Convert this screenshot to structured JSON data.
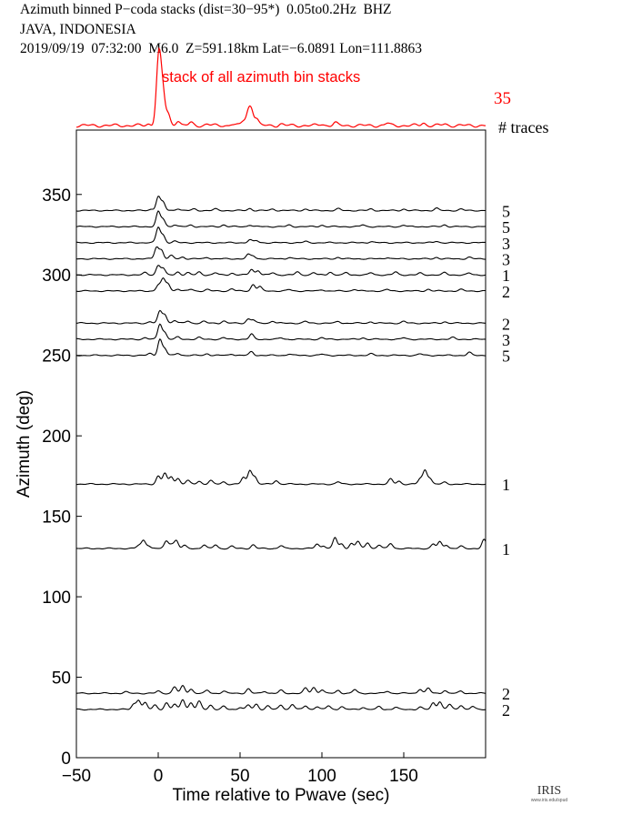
{
  "header": {
    "line1": "Azimuth binned P−coda stacks (dist=30−95*)  0.05to0.2Hz  BHZ",
    "line2": "JAVA, INDONESIA",
    "line3": "2019/09/19  07:32:00  M6.0  Z=591.18km Lat=−6.0891 Lon=111.8863"
  },
  "colors": {
    "stack": "#ff0000",
    "trace": "#000000",
    "axis": "#000000"
  },
  "logo": {
    "text": "IRIS",
    "subtext": "www.iris.edu/spud"
  },
  "chart_data": {
    "type": "line",
    "title": "",
    "xlabel": "Time relative to Pwave (sec)",
    "ylabel": "Azimuth (deg)",
    "xlim": [
      -50,
      200
    ],
    "ylim": [
      0,
      390
    ],
    "xticks": [
      -50,
      0,
      50,
      100,
      150
    ],
    "yticks": [
      0,
      50,
      100,
      150,
      200,
      250,
      300,
      350
    ],
    "grid": false,
    "stack": {
      "label": "stack of all azimuth bin stacks",
      "count": 35,
      "count_label": "# traces",
      "peaks": [
        [
          -6,
          0.04
        ],
        [
          -1,
          0.25
        ],
        [
          0,
          0.9
        ],
        [
          1,
          1.0
        ],
        [
          3,
          0.75
        ],
        [
          6,
          0.3
        ],
        [
          12,
          0.14
        ],
        [
          20,
          0.07
        ],
        [
          30,
          0.04
        ],
        [
          45,
          0.04
        ],
        [
          52,
          0.12
        ],
        [
          55,
          0.33
        ],
        [
          57,
          0.38
        ],
        [
          60,
          0.18
        ],
        [
          75,
          0.04
        ],
        [
          100,
          0.04
        ],
        [
          108,
          0.07
        ],
        [
          140,
          0.06
        ],
        [
          162,
          0.07
        ],
        [
          175,
          0.04
        ]
      ]
    },
    "traces": [
      {
        "azimuth": 340,
        "count": "5",
        "peaks": [
          [
            -4,
            0.1
          ],
          [
            0,
            0.95
          ],
          [
            3,
            0.55
          ],
          [
            12,
            0.14
          ],
          [
            22,
            0.1
          ],
          [
            35,
            0.1
          ],
          [
            56,
            0.14
          ],
          [
            70,
            0.1
          ],
          [
            90,
            0.1
          ],
          [
            110,
            0.12
          ],
          [
            130,
            0.1
          ],
          [
            150,
            0.1
          ],
          [
            170,
            0.15
          ],
          [
            185,
            0.1
          ]
        ]
      },
      {
        "azimuth": 330,
        "count": "5",
        "peaks": [
          [
            0,
            1.0
          ],
          [
            3,
            0.5
          ],
          [
            10,
            0.14
          ],
          [
            20,
            0.1
          ],
          [
            40,
            0.12
          ],
          [
            56,
            0.12
          ],
          [
            80,
            0.1
          ],
          [
            100,
            0.1
          ],
          [
            125,
            0.12
          ],
          [
            150,
            0.1
          ],
          [
            175,
            0.12
          ]
        ]
      },
      {
        "azimuth": 320,
        "count": "3",
        "peaks": [
          [
            0,
            1.05
          ],
          [
            3,
            0.5
          ],
          [
            10,
            0.1
          ],
          [
            56,
            0.2
          ],
          [
            60,
            0.14
          ],
          [
            90,
            0.08
          ],
          [
            130,
            0.08
          ],
          [
            170,
            0.1
          ]
        ]
      },
      {
        "azimuth": 310,
        "count": "3",
        "peaks": [
          [
            -1,
            0.8
          ],
          [
            2,
            0.6
          ],
          [
            8,
            0.22
          ],
          [
            15,
            0.12
          ],
          [
            30,
            0.1
          ],
          [
            55,
            0.28
          ],
          [
            58,
            0.2
          ],
          [
            80,
            0.1
          ],
          [
            110,
            0.1
          ],
          [
            140,
            0.1
          ],
          [
            170,
            0.1
          ],
          [
            190,
            0.1
          ]
        ]
      },
      {
        "azimuth": 300,
        "count": "1",
        "peaks": [
          [
            -8,
            0.15
          ],
          [
            0,
            0.65
          ],
          [
            3,
            0.45
          ],
          [
            12,
            0.2
          ],
          [
            18,
            0.15
          ],
          [
            25,
            0.2
          ],
          [
            35,
            0.14
          ],
          [
            45,
            0.12
          ],
          [
            57,
            0.4
          ],
          [
            61,
            0.3
          ],
          [
            70,
            0.15
          ],
          [
            85,
            0.2
          ],
          [
            95,
            0.15
          ],
          [
            105,
            0.2
          ],
          [
            115,
            0.15
          ],
          [
            130,
            0.15
          ],
          [
            145,
            0.2
          ],
          [
            160,
            0.12
          ],
          [
            175,
            0.15
          ],
          [
            190,
            0.12
          ]
        ]
      },
      {
        "azimuth": 290,
        "count": "2",
        "peaks": [
          [
            0,
            0.4
          ],
          [
            3,
            0.8
          ],
          [
            6,
            0.5
          ],
          [
            12,
            0.15
          ],
          [
            20,
            0.12
          ],
          [
            30,
            0.1
          ],
          [
            45,
            0.15
          ],
          [
            58,
            0.45
          ],
          [
            62,
            0.3
          ],
          [
            80,
            0.1
          ],
          [
            100,
            0.1
          ],
          [
            120,
            0.12
          ],
          [
            140,
            0.1
          ],
          [
            165,
            0.12
          ],
          [
            185,
            0.1
          ]
        ]
      },
      {
        "azimuth": 270,
        "count": "2",
        "peaks": [
          [
            -5,
            0.1
          ],
          [
            1,
            0.8
          ],
          [
            4,
            0.6
          ],
          [
            10,
            0.2
          ],
          [
            18,
            0.15
          ],
          [
            28,
            0.12
          ],
          [
            40,
            0.15
          ],
          [
            55,
            0.28
          ],
          [
            58,
            0.22
          ],
          [
            70,
            0.15
          ],
          [
            90,
            0.12
          ],
          [
            110,
            0.12
          ],
          [
            130,
            0.1
          ],
          [
            150,
            0.12
          ],
          [
            175,
            0.1
          ]
        ]
      },
      {
        "azimuth": 260,
        "count": "3",
        "peaks": [
          [
            -8,
            0.1
          ],
          [
            1,
            1.05
          ],
          [
            4,
            0.45
          ],
          [
            12,
            0.15
          ],
          [
            25,
            0.12
          ],
          [
            40,
            0.1
          ],
          [
            57,
            0.35
          ],
          [
            75,
            0.1
          ],
          [
            100,
            0.1
          ],
          [
            125,
            0.1
          ],
          [
            150,
            0.1
          ],
          [
            180,
            0.12
          ]
        ]
      },
      {
        "azimuth": 250,
        "count": "5",
        "peaks": [
          [
            -5,
            0.12
          ],
          [
            1,
            1.1
          ],
          [
            4,
            0.45
          ],
          [
            12,
            0.15
          ],
          [
            30,
            0.12
          ],
          [
            45,
            0.1
          ],
          [
            57,
            0.25
          ],
          [
            80,
            0.1
          ],
          [
            100,
            0.08
          ],
          [
            130,
            0.1
          ],
          [
            160,
            0.1
          ],
          [
            190,
            0.2
          ]
        ]
      },
      {
        "azimuth": 170,
        "count": "1",
        "peaks": [
          [
            0,
            0.55
          ],
          [
            4,
            0.75
          ],
          [
            8,
            0.5
          ],
          [
            12,
            0.4
          ],
          [
            18,
            0.25
          ],
          [
            25,
            0.2
          ],
          [
            32,
            0.25
          ],
          [
            40,
            0.15
          ],
          [
            52,
            0.45
          ],
          [
            56,
            0.95
          ],
          [
            59,
            0.5
          ],
          [
            72,
            0.25
          ],
          [
            110,
            0.15
          ],
          [
            142,
            0.35
          ],
          [
            147,
            0.2
          ],
          [
            160,
            0.35
          ],
          [
            163,
            0.95
          ],
          [
            166,
            0.4
          ],
          [
            175,
            0.12
          ]
        ]
      },
      {
        "azimuth": 130,
        "count": "1",
        "peaks": [
          [
            -12,
            0.2
          ],
          [
            -9,
            0.55
          ],
          [
            -6,
            0.2
          ],
          [
            5,
            0.5
          ],
          [
            8,
            0.3
          ],
          [
            11,
            0.55
          ],
          [
            16,
            0.2
          ],
          [
            28,
            0.25
          ],
          [
            35,
            0.25
          ],
          [
            45,
            0.15
          ],
          [
            58,
            0.25
          ],
          [
            75,
            0.2
          ],
          [
            97,
            0.3
          ],
          [
            101,
            0.2
          ],
          [
            108,
            0.75
          ],
          [
            112,
            0.3
          ],
          [
            118,
            0.35
          ],
          [
            122,
            0.5
          ],
          [
            128,
            0.4
          ],
          [
            135,
            0.25
          ],
          [
            142,
            0.35
          ],
          [
            168,
            0.3
          ],
          [
            172,
            0.45
          ],
          [
            176,
            0.25
          ],
          [
            185,
            0.15
          ],
          [
            199,
            0.6
          ]
        ]
      },
      {
        "azimuth": 40,
        "count": "2",
        "peaks": [
          [
            -20,
            0.1
          ],
          [
            0,
            0.15
          ],
          [
            10,
            0.45
          ],
          [
            15,
            0.5
          ],
          [
            20,
            0.3
          ],
          [
            30,
            0.2
          ],
          [
            40,
            0.15
          ],
          [
            55,
            0.3
          ],
          [
            65,
            0.15
          ],
          [
            75,
            0.2
          ],
          [
            90,
            0.35
          ],
          [
            95,
            0.4
          ],
          [
            100,
            0.25
          ],
          [
            110,
            0.2
          ],
          [
            120,
            0.25
          ],
          [
            140,
            0.15
          ],
          [
            160,
            0.3
          ],
          [
            165,
            0.35
          ],
          [
            175,
            0.2
          ],
          [
            185,
            0.15
          ]
        ]
      },
      {
        "azimuth": 30,
        "count": "2",
        "peaks": [
          [
            -15,
            0.35
          ],
          [
            -12,
            0.65
          ],
          [
            -8,
            0.45
          ],
          [
            -2,
            0.3
          ],
          [
            5,
            0.45
          ],
          [
            10,
            0.35
          ],
          [
            15,
            0.7
          ],
          [
            20,
            0.45
          ],
          [
            25,
            0.55
          ],
          [
            32,
            0.3
          ],
          [
            40,
            0.2
          ],
          [
            50,
            0.15
          ],
          [
            55,
            0.3
          ],
          [
            60,
            0.35
          ],
          [
            67,
            0.25
          ],
          [
            75,
            0.3
          ],
          [
            82,
            0.35
          ],
          [
            90,
            0.25
          ],
          [
            97,
            0.2
          ],
          [
            104,
            0.25
          ],
          [
            112,
            0.2
          ],
          [
            125,
            0.15
          ],
          [
            135,
            0.2
          ],
          [
            145,
            0.15
          ],
          [
            160,
            0.15
          ],
          [
            168,
            0.45
          ],
          [
            172,
            0.55
          ],
          [
            178,
            0.35
          ],
          [
            185,
            0.3
          ],
          [
            192,
            0.2
          ]
        ]
      }
    ]
  }
}
